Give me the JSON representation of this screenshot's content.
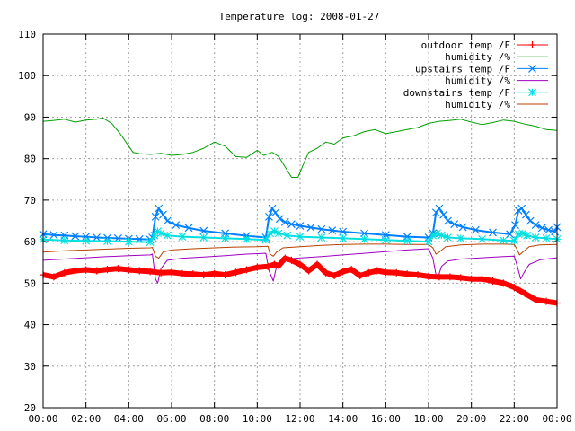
{
  "chart_data": {
    "type": "line",
    "title": "Temperature log: 2008-01-27",
    "xlabel": "",
    "ylabel": "",
    "xlim": [
      0,
      24
    ],
    "ylim": [
      20,
      110
    ],
    "grid": true,
    "legend_position": "top-right",
    "x_ticks": [
      {
        "v": 0,
        "label": "00:00"
      },
      {
        "v": 2,
        "label": "02:00"
      },
      {
        "v": 4,
        "label": "04:00"
      },
      {
        "v": 6,
        "label": "06:00"
      },
      {
        "v": 8,
        "label": "08:00"
      },
      {
        "v": 10,
        "label": "10:00"
      },
      {
        "v": 12,
        "label": "12:00"
      },
      {
        "v": 14,
        "label": "14:00"
      },
      {
        "v": 16,
        "label": "16:00"
      },
      {
        "v": 18,
        "label": "18:00"
      },
      {
        "v": 20,
        "label": "20:00"
      },
      {
        "v": 22,
        "label": "22:00"
      },
      {
        "v": 24,
        "label": "00:00"
      }
    ],
    "y_ticks": [
      {
        "v": 20,
        "label": "20"
      },
      {
        "v": 30,
        "label": "30"
      },
      {
        "v": 40,
        "label": "40"
      },
      {
        "v": 50,
        "label": "50"
      },
      {
        "v": 60,
        "label": "60"
      },
      {
        "v": 70,
        "label": "70"
      },
      {
        "v": 80,
        "label": "80"
      },
      {
        "v": 90,
        "label": "90"
      },
      {
        "v": 100,
        "label": "100"
      },
      {
        "v": 110,
        "label": "110"
      }
    ],
    "series": [
      {
        "name": "outdoor temp /F",
        "color": "#ff0000",
        "marker": "plus",
        "heavy": true,
        "x": [
          0,
          0.5,
          1,
          1.5,
          2,
          2.5,
          3,
          3.5,
          4,
          4.5,
          5,
          5.5,
          6,
          6.5,
          7,
          7.5,
          8,
          8.5,
          9,
          9.5,
          10,
          10.5,
          10.8,
          11,
          11.3,
          11.6,
          12,
          12.4,
          12.8,
          13.2,
          13.6,
          14,
          14.4,
          14.8,
          15.2,
          15.6,
          16,
          16.5,
          17,
          17.5,
          18,
          18.5,
          19,
          19.5,
          20,
          20.5,
          21,
          21.5,
          22,
          22.5,
          23,
          23.5,
          24
        ],
        "y": [
          52,
          51.5,
          52.5,
          53,
          53.2,
          53,
          53.3,
          53.5,
          53.2,
          53,
          52.8,
          52.5,
          52.6,
          52.3,
          52.2,
          52,
          52.3,
          52,
          52.6,
          53.2,
          53.8,
          54,
          54.5,
          54.2,
          56,
          55.5,
          54.5,
          53,
          54.5,
          52.5,
          51.8,
          52.8,
          53.3,
          51.8,
          52.5,
          53,
          52.6,
          52.5,
          52.2,
          52,
          51.6,
          51.5,
          51.5,
          51.3,
          51,
          51,
          50.5,
          50,
          49,
          47.5,
          46,
          45.6,
          45.2
        ]
      },
      {
        "name": "humidity /%",
        "color": "#00a000",
        "marker": "none",
        "x": [
          0,
          0.5,
          1,
          1.5,
          2,
          2.5,
          2.8,
          3.2,
          3.6,
          4,
          4.2,
          4.5,
          5,
          5.5,
          6,
          6.5,
          7,
          7.5,
          8,
          8.5,
          9,
          9.5,
          10,
          10.3,
          10.7,
          11,
          11.3,
          11.6,
          11.9,
          12.1,
          12.4,
          12.8,
          13.2,
          13.6,
          14,
          14.5,
          15,
          15.5,
          16,
          16.5,
          17,
          17.5,
          18,
          18.5,
          19,
          19.5,
          20,
          20.5,
          21,
          21.5,
          22,
          22.5,
          23,
          23.5,
          24
        ],
        "y": [
          89,
          89.2,
          89.5,
          88.8,
          89.3,
          89.5,
          89.8,
          88.5,
          86,
          83,
          81.5,
          81.2,
          81,
          81.3,
          80.8,
          81,
          81.5,
          82.5,
          84,
          83,
          80.5,
          80.3,
          82,
          80.8,
          81.5,
          80.5,
          78,
          75.5,
          75.5,
          78,
          81.5,
          82.5,
          84,
          83.5,
          85,
          85.5,
          86.5,
          87,
          86,
          86.5,
          87,
          87.5,
          88.5,
          89,
          89.2,
          89.5,
          88.8,
          88.2,
          88.7,
          89.3,
          89,
          88.3,
          87.8,
          87,
          86.8
        ]
      },
      {
        "name": "upstairs temp /F",
        "color": "#0080ff",
        "marker": "cross",
        "x": [
          0,
          0.5,
          1,
          1.5,
          2,
          2.5,
          3,
          3.5,
          4,
          4.5,
          5,
          5.1,
          5.25,
          5.4,
          5.6,
          5.8,
          6.2,
          6.8,
          7.5,
          8.5,
          9.5,
          10.4,
          10.55,
          10.7,
          10.85,
          11.05,
          11.3,
          11.6,
          12,
          12.5,
          13,
          13.5,
          14,
          15,
          16,
          17,
          18,
          18.2,
          18.35,
          18.5,
          18.7,
          18.9,
          19.2,
          19.6,
          20.2,
          21,
          21.8,
          22.05,
          22.2,
          22.35,
          22.55,
          22.75,
          23,
          23.3,
          23.6,
          23.9,
          24
        ],
        "y": [
          61.8,
          61.6,
          61.5,
          61.3,
          61.2,
          61,
          60.9,
          60.8,
          60.7,
          60.6,
          60.5,
          61,
          66,
          68,
          66.5,
          65,
          64,
          63.3,
          62.6,
          62,
          61.4,
          61,
          66,
          68,
          67,
          65.5,
          64.7,
          64.2,
          63.8,
          63.4,
          63,
          62.7,
          62.4,
          62,
          61.6,
          61.2,
          61,
          62,
          67,
          68,
          66.5,
          65,
          64.2,
          63.5,
          62.8,
          62.2,
          61.8,
          64,
          67.5,
          68,
          66.5,
          65,
          64,
          63.3,
          62.8,
          62.4,
          63.5
        ]
      },
      {
        "name": "humidity /%",
        "color": "#a000c0",
        "marker": "none",
        "x": [
          0,
          1,
          2,
          3,
          4,
          5,
          5.1,
          5.25,
          5.35,
          5.5,
          5.8,
          6.5,
          7.5,
          8.5,
          9.5,
          10.4,
          10.55,
          10.75,
          10.9,
          11.2,
          11.8,
          13,
          14,
          15,
          16,
          17,
          18,
          18.2,
          18.35,
          18.45,
          18.6,
          18.9,
          19.5,
          20.5,
          21.5,
          22,
          22.15,
          22.3,
          22.45,
          22.7,
          23.2,
          23.8,
          24
        ],
        "y": [
          55.5,
          55.8,
          56.1,
          56.4,
          56.6,
          56.8,
          57,
          51,
          50,
          53.5,
          55.5,
          56,
          56.3,
          56.6,
          57,
          57.2,
          53,
          50.5,
          54,
          55.5,
          56,
          56.4,
          56.8,
          57.2,
          57.6,
          58,
          58.3,
          56,
          52,
          51.5,
          54,
          55.3,
          55.8,
          56.1,
          56.4,
          56.5,
          54,
          51,
          52.5,
          54.5,
          55.6,
          56,
          56.1
        ]
      },
      {
        "name": "downstairs temp /F",
        "color": "#00e0e0",
        "marker": "star",
        "x": [
          0,
          1,
          2,
          3,
          4,
          5,
          5.2,
          5.35,
          5.5,
          5.8,
          6.5,
          7.5,
          8.5,
          9.5,
          10.4,
          10.6,
          10.8,
          11,
          11.4,
          12,
          13,
          14,
          15,
          16,
          17,
          18,
          18.2,
          18.4,
          18.6,
          18.9,
          19.5,
          20.5,
          21.5,
          22,
          22.2,
          22.4,
          22.6,
          23,
          23.5,
          24
        ],
        "y": [
          60.5,
          60.3,
          60.2,
          60.1,
          60,
          59.9,
          61.5,
          62.5,
          62,
          61.5,
          61.2,
          61,
          60.8,
          60.6,
          60.4,
          62,
          62.5,
          62,
          61.5,
          61.2,
          61,
          60.8,
          60.6,
          60.4,
          60.2,
          60,
          61.5,
          62,
          61.5,
          61,
          60.8,
          60.6,
          60.3,
          60.2,
          61.8,
          62,
          61.5,
          61,
          60.8,
          60.6
        ]
      },
      {
        "name": "humidity /%",
        "color": "#b84000",
        "marker": "none",
        "x": [
          0,
          1,
          2,
          3,
          4,
          5,
          5.1,
          5.25,
          5.4,
          5.6,
          6,
          7,
          8,
          9,
          10,
          10.5,
          10.6,
          10.75,
          10.9,
          11.2,
          12,
          13,
          14,
          15,
          16,
          17,
          18,
          18.2,
          18.35,
          18.5,
          18.8,
          19.5,
          20.5,
          21.5,
          22,
          22.1,
          22.25,
          22.4,
          22.7,
          23.2,
          24
        ],
        "y": [
          57.5,
          57.8,
          58,
          58.2,
          58.4,
          58.5,
          58.6,
          56.5,
          56,
          57.5,
          58,
          58.3,
          58.5,
          58.7,
          58.8,
          58.9,
          57,
          56.5,
          57.5,
          58.5,
          58.8,
          59.1,
          59.3,
          59.4,
          59.4,
          59.3,
          59.3,
          58.5,
          57,
          57.5,
          58.8,
          59.2,
          59.4,
          59.4,
          59.3,
          58.5,
          56.8,
          57.5,
          58.8,
          59.2,
          59.3
        ]
      }
    ]
  }
}
